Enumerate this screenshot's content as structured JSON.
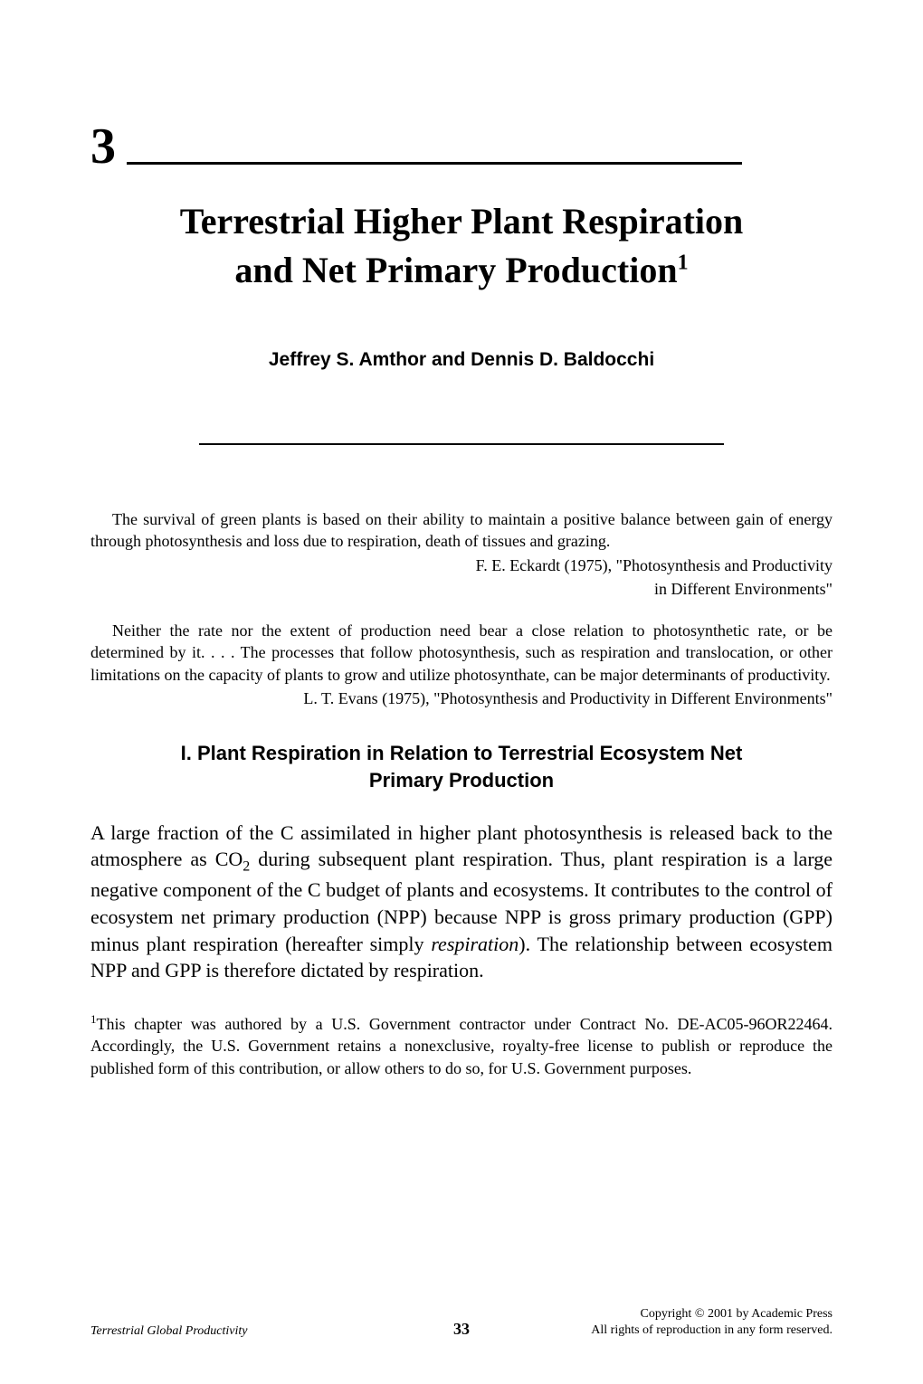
{
  "chapter": {
    "number": "3",
    "title": "Terrestrial Higher Plant Respiration and Net Primary Production",
    "title_superscript": "1",
    "authors": "Jeffrey S. Amthor and Dennis D. Baldocchi"
  },
  "quotes": [
    {
      "text": "The survival of green plants is based on their ability to maintain a positive balance between gain of energy through photosynthesis and loss due to respiration, death of tissues and grazing.",
      "attribution_line1": "F. E. Eckardt (1975), \"Photosynthesis and Productivity",
      "attribution_line2": "in Different Environments\""
    },
    {
      "text": "Neither the rate nor the extent of production need bear a close relation to photosynthetic rate, or be determined by it. . . . The processes that follow photosynthesis, such as respiration and translocation, or other limitations on the capacity of plants to grow and utilize photosynthate, can be major determinants of productivity.",
      "attribution_line1": "L. T. Evans (1975), \"Photosynthesis and Productivity in Different Environments\"",
      "attribution_line2": ""
    }
  ],
  "section": {
    "heading": "I. Plant Respiration in Relation to Terrestrial Ecosystem Net Primary Production"
  },
  "body": {
    "p1_a": "A large fraction of the C assimilated in higher plant photosynthesis is released back to the atmosphere as CO",
    "p1_sub": "2",
    "p1_b": " during subsequent plant respiration. Thus, plant respiration is a large negative component of the C budget of plants and ecosystems. It contributes to the control of ecosystem net primary production (NPP) because NPP is gross primary production (GPP) minus plant respiration (hereafter simply ",
    "p1_italic": "respiration",
    "p1_c": "). The relationship between ecosystem NPP and GPP is therefore dictated by respiration."
  },
  "footnote": {
    "marker": "1",
    "text": "This chapter was authored by a U.S. Government contractor under Contract No. DE-AC05-96OR22464. Accordingly, the U.S. Government retains a nonexclusive, royalty-free license to publish or reproduce the published form of this contribution, or allow others to do so, for U.S. Government purposes."
  },
  "footer": {
    "left": "Terrestrial Global Productivity",
    "page_number": "33",
    "right_line1": "Copyright © 2001 by Academic Press",
    "right_line2": "All rights of reproduction in any form reserved."
  },
  "styles": {
    "background_color": "#ffffff",
    "text_color": "#000000",
    "chapter_number_fontsize": 56,
    "title_fontsize": 40,
    "authors_fontsize": 21,
    "quote_fontsize": 18,
    "section_heading_fontsize": 22,
    "body_fontsize": 22,
    "footnote_fontsize": 18,
    "footer_fontsize": 14
  }
}
